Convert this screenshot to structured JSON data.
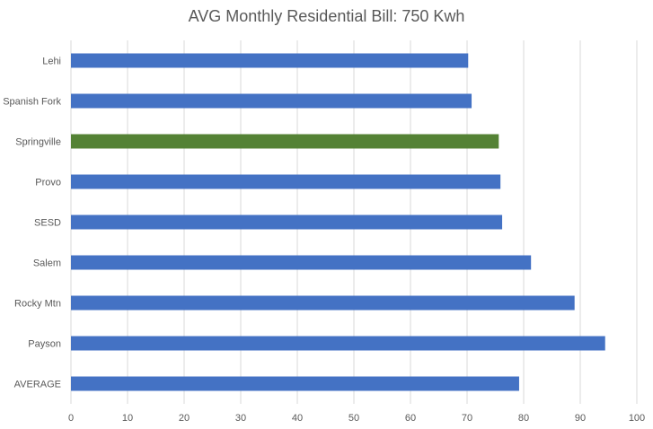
{
  "chart_data": {
    "type": "bar",
    "orientation": "horizontal",
    "title": "AVG Monthly Residential Bill: 750 Kwh",
    "categories": [
      "Lehi",
      "Spanish Fork",
      "Springville",
      "Provo",
      "SESD",
      "Salem",
      "Rocky Mtn",
      "Payson",
      "AVERAGE"
    ],
    "values": [
      70.2,
      70.8,
      75.6,
      75.9,
      76.2,
      81.3,
      89.0,
      94.4,
      79.2
    ],
    "colors": [
      "#4472C4",
      "#4472C4",
      "#548235",
      "#4472C4",
      "#4472C4",
      "#4472C4",
      "#4472C4",
      "#4472C4",
      "#4472C4"
    ],
    "xlim": [
      0,
      100
    ],
    "xticks": [
      "0",
      "10",
      "20",
      "30",
      "40",
      "50",
      "60",
      "70",
      "80",
      "90",
      "100"
    ],
    "grid": true,
    "xlabel": "",
    "ylabel": ""
  }
}
